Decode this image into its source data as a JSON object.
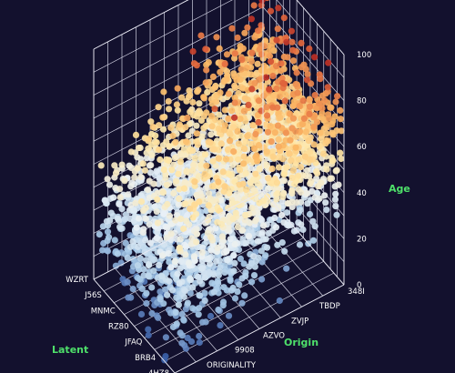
{
  "chart_data": {
    "type": "scatter3d",
    "title": "",
    "axes": {
      "x": {
        "label": "Latent",
        "ticks": [
          "4HZ8",
          "BRB4",
          "JFAQ",
          "RZ80",
          "MNMC",
          "J56S",
          "WZRT"
        ]
      },
      "y": {
        "label": "Origin",
        "ticks": [
          "1ACV",
          "ORIGINALITY",
          "9908",
          "AZVO",
          "ZVJP",
          "TBDP",
          "348I"
        ]
      },
      "z": {
        "label": "Age",
        "ticks": [
          "0",
          "20",
          "40",
          "60",
          "80",
          "100"
        ],
        "range": [
          0,
          100
        ]
      }
    },
    "colorscale": {
      "variable": "Age",
      "stops": [
        {
          "value": 0,
          "color": "#3b5fa8"
        },
        {
          "value": 20,
          "color": "#a9cbe8"
        },
        {
          "value": 40,
          "color": "#eaf1f6"
        },
        {
          "value": 55,
          "color": "#ffe6a6"
        },
        {
          "value": 70,
          "color": "#fbb865"
        },
        {
          "value": 85,
          "color": "#e46b3f"
        },
        {
          "value": 100,
          "color": "#b3201f"
        }
      ]
    },
    "distribution": {
      "description_of_trend": "Age rises with Origin; dense cloud spanning all Latent categories",
      "age_at_first_origin": [
        5,
        45
      ],
      "age_at_last_origin": [
        35,
        85
      ],
      "outliers_max_age": 98
    },
    "grid": true
  }
}
